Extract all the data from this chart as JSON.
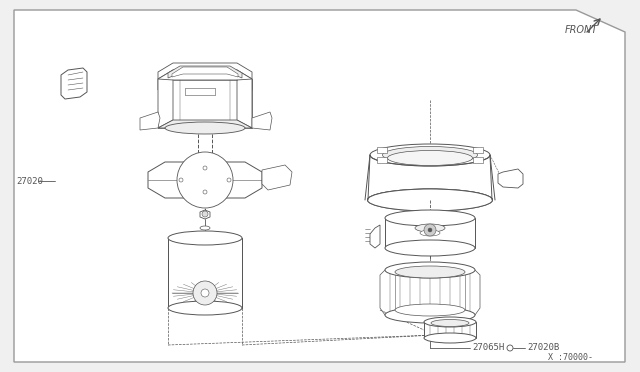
{
  "bg_color": "#f0f0f0",
  "border_color": "#999999",
  "line_color": "#555555",
  "line_color2": "#777777",
  "white": "#ffffff",
  "label_27020": "27020",
  "label_27065H": "27065H",
  "label_27020B": "27020B",
  "label_x70000": "X :70000-",
  "label_front": "FRONT",
  "fig_width": 6.4,
  "fig_height": 3.72,
  "dpi": 100
}
